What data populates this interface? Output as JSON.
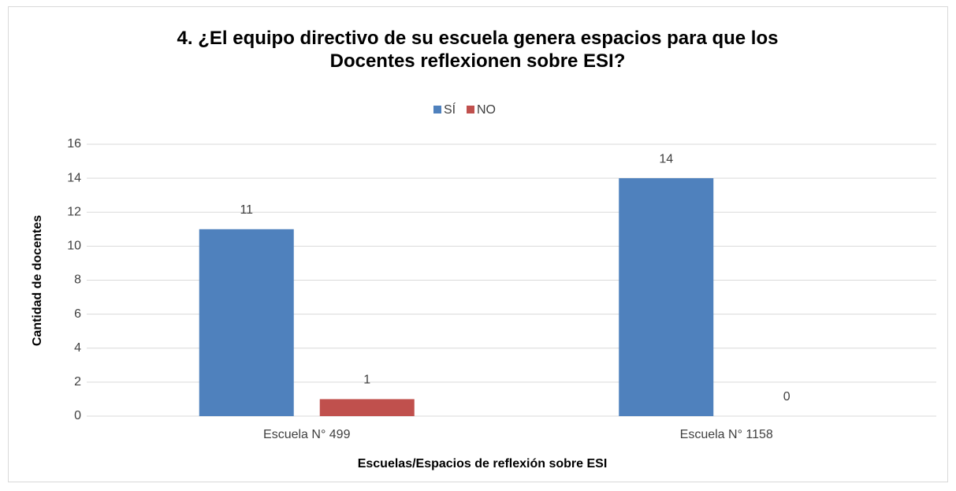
{
  "chart_data": {
    "type": "bar",
    "title": "4. ¿El equipo directivo de su escuela genera espacios para que los Docentes reflexionen sobre ESI?",
    "categories": [
      "Escuela N° 499",
      "Escuela N° 1158"
    ],
    "series": [
      {
        "name": "SÍ",
        "color": "#4f81bd",
        "values": [
          11,
          14
        ]
      },
      {
        "name": "NO",
        "color": "#c0504d",
        "values": [
          1,
          0
        ]
      }
    ],
    "xlabel": "Escuelas/Espacios de reflexión sobre ESI",
    "ylabel": "Cantidad de docentes",
    "ylim": [
      0,
      16
    ],
    "yticks": [
      0,
      2,
      4,
      6,
      8,
      10,
      12,
      14,
      16
    ],
    "grid": true,
    "legend": "top"
  }
}
